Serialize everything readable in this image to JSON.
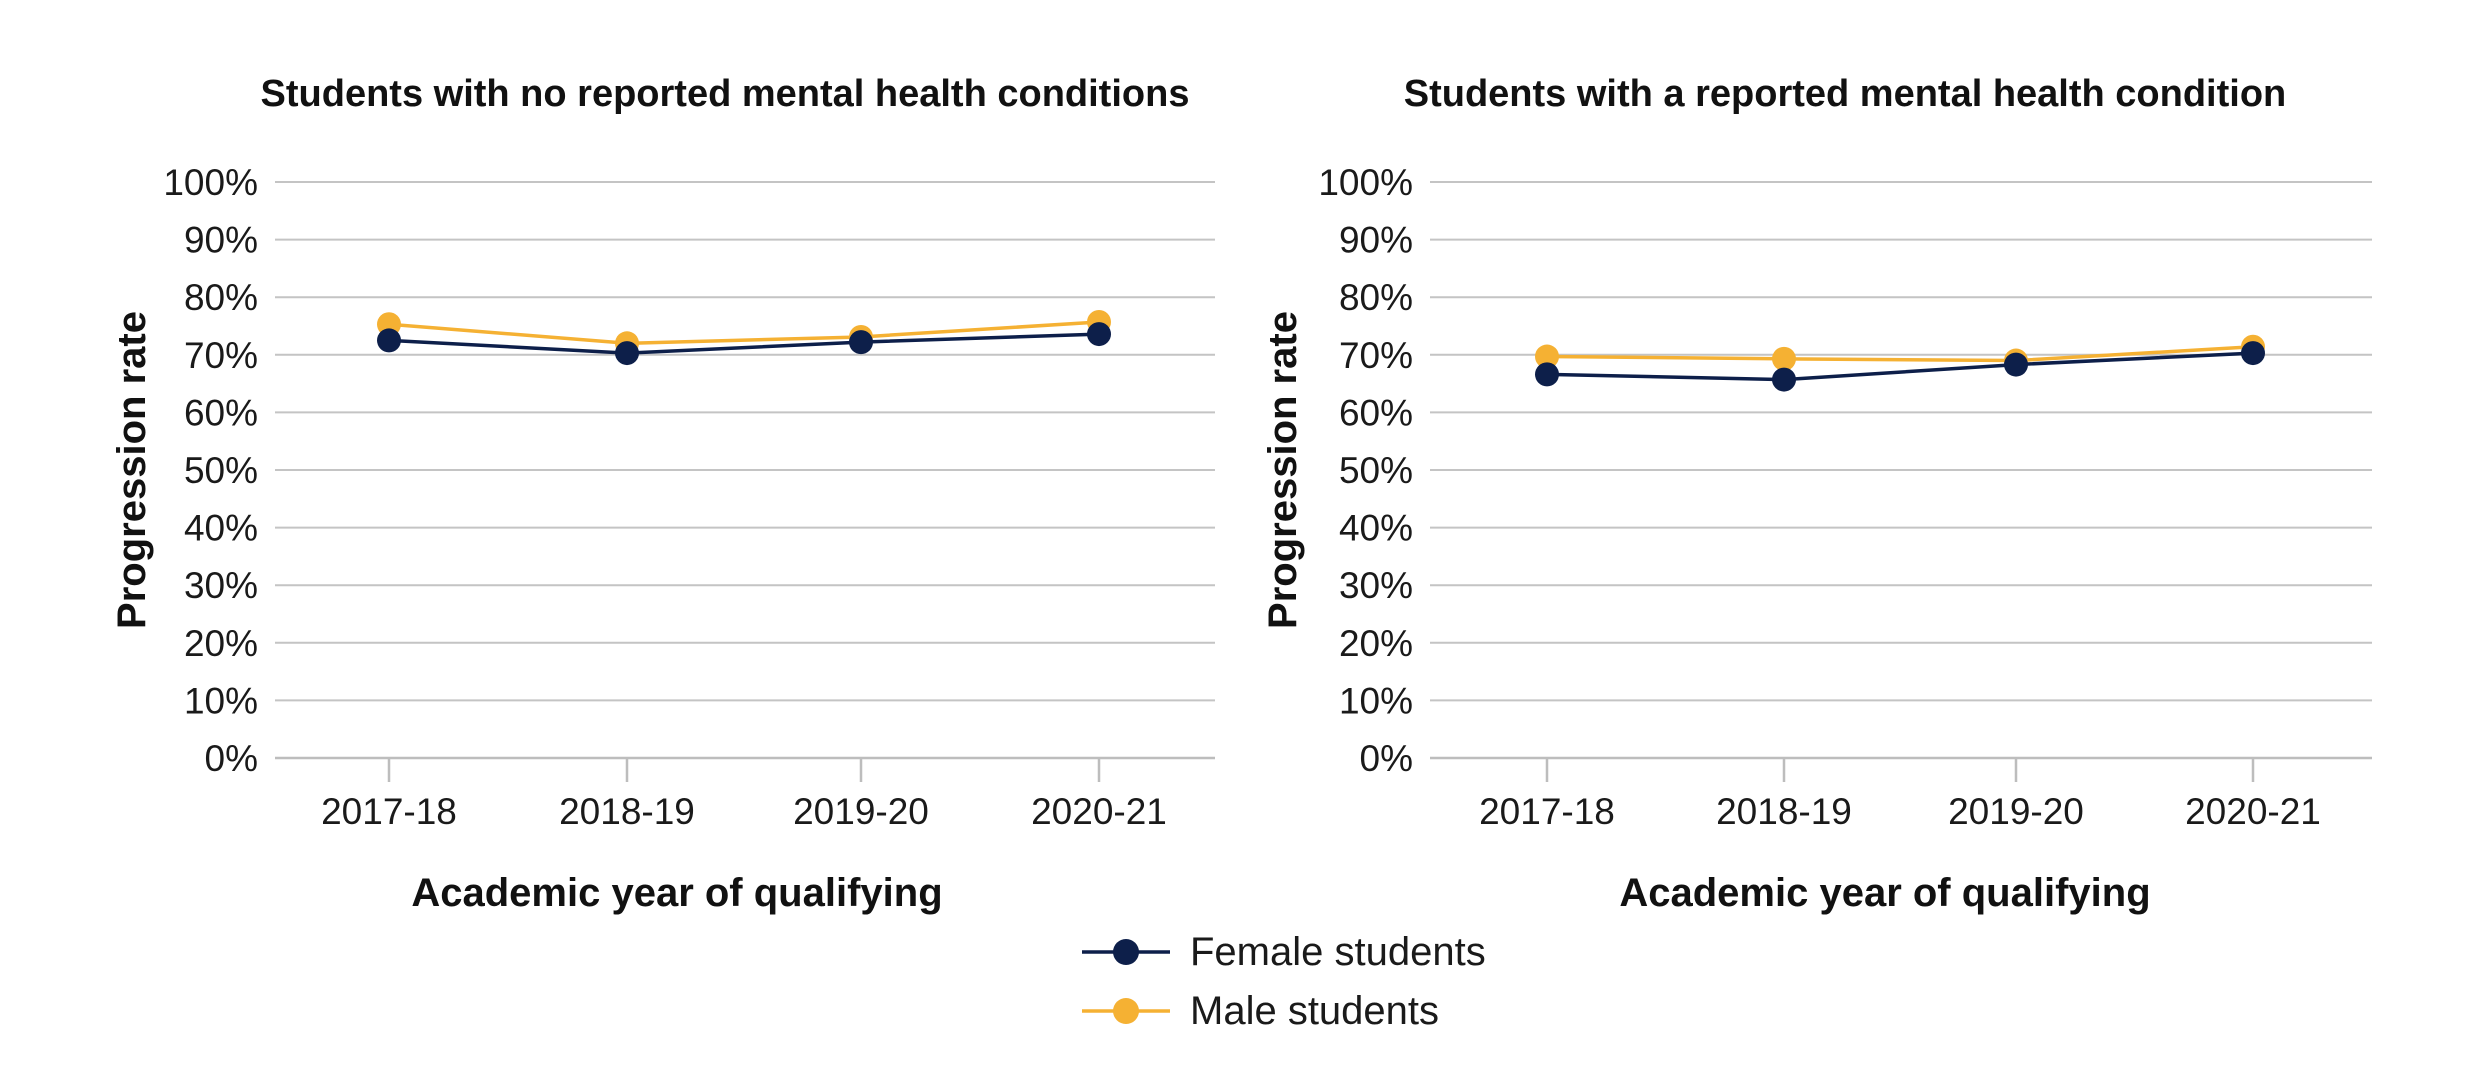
{
  "legend": [
    {
      "label": "Female students",
      "color": "#0d1f4a"
    },
    {
      "label": "Male students",
      "color": "#f5b133"
    }
  ],
  "chart_data": [
    {
      "type": "line",
      "title": "Students with no reported mental health conditions",
      "xlabel": "Academic year of qualifying",
      "ylabel": "Progression rate",
      "ylim": [
        0,
        100
      ],
      "yticks": [
        "0%",
        "10%",
        "20%",
        "30%",
        "40%",
        "50%",
        "60%",
        "70%",
        "80%",
        "90%",
        "100%"
      ],
      "categories": [
        "2017-18",
        "2018-19",
        "2019-20",
        "2020-21"
      ],
      "grid": true,
      "series": [
        {
          "name": "Female students",
          "color": "#0d1f4a",
          "values": [
            72.5,
            70.3,
            72.2,
            73.6
          ]
        },
        {
          "name": "Male students",
          "color": "#f5b133",
          "values": [
            75.3,
            72.0,
            73.1,
            75.7
          ]
        }
      ]
    },
    {
      "type": "line",
      "title": "Students with a reported mental health condition",
      "xlabel": "Academic year of qualifying",
      "ylabel": "Progression rate",
      "ylim": [
        0,
        100
      ],
      "yticks": [
        "0%",
        "10%",
        "20%",
        "30%",
        "40%",
        "50%",
        "60%",
        "70%",
        "80%",
        "90%",
        "100%"
      ],
      "categories": [
        "2017-18",
        "2018-19",
        "2019-20",
        "2020-21"
      ],
      "grid": true,
      "series": [
        {
          "name": "Female students",
          "color": "#0d1f4a",
          "values": [
            66.6,
            65.7,
            68.3,
            70.3
          ]
        },
        {
          "name": "Male students",
          "color": "#f5b133",
          "values": [
            69.7,
            69.3,
            69.0,
            71.4
          ]
        }
      ]
    }
  ]
}
